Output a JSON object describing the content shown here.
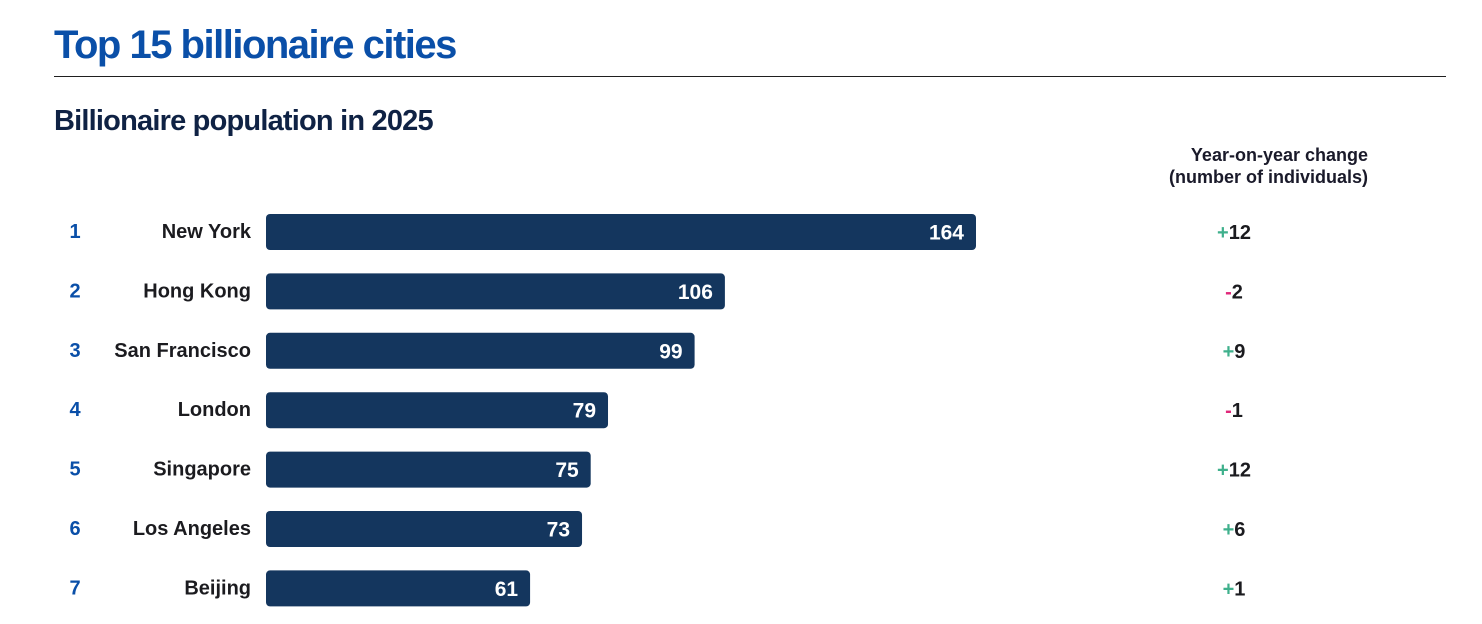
{
  "title": "Top 15 billionaire cities",
  "chart_data": {
    "type": "bar",
    "orientation": "horizontal",
    "subtitle": "Billionaire population in 2025",
    "change_header": [
      "Year-on-year change",
      "(number of individuals)"
    ],
    "ranks": [
      "1",
      "2",
      "3",
      "4",
      "5",
      "6",
      "7"
    ],
    "categories": [
      "New York",
      "Hong Kong",
      "San Francisco",
      "London",
      "Singapore",
      "Los Angeles",
      "Beijing"
    ],
    "values": [
      164,
      106,
      99,
      79,
      75,
      73,
      61
    ],
    "changes": [
      {
        "sign": "+",
        "number": "12"
      },
      {
        "sign": "-",
        "number": "2"
      },
      {
        "sign": "+",
        "number": "9"
      },
      {
        "sign": "-",
        "number": "1"
      },
      {
        "sign": "+",
        "number": "12"
      },
      {
        "sign": "+",
        "number": "6"
      },
      {
        "sign": "+",
        "number": "1"
      }
    ],
    "value_labels": "inside-end",
    "grid": false,
    "legend": "none"
  },
  "colors": {
    "bar": "#14365e",
    "title": "#0a4fa8",
    "rank": "#0a4fa8",
    "positive_sign": "#3fb08c",
    "negative_sign": "#e0287a"
  }
}
